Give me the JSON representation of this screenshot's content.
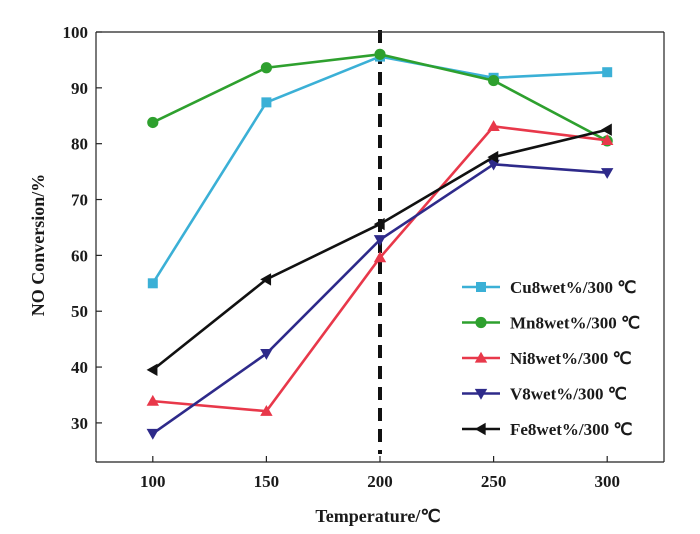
{
  "chart_data": {
    "type": "line",
    "xlabel": "Temperature/℃",
    "ylabel": "NO Conversion/%",
    "x": [
      100,
      150,
      200,
      250,
      300
    ],
    "xlim": [
      75,
      325
    ],
    "ylim": [
      23,
      100
    ],
    "xticks": [
      100,
      150,
      200,
      250,
      300
    ],
    "yticks": [
      30,
      40,
      50,
      60,
      70,
      80,
      90,
      100
    ],
    "grid": false,
    "legend_position": "bottom-right",
    "reference_line": {
      "x": 200,
      "style": "dashed",
      "color": "#111111"
    },
    "series": [
      {
        "name": "Cu8wet%/300 ℃",
        "color": "#3bb0d6",
        "marker": "square",
        "values": [
          55.0,
          87.4,
          95.6,
          91.8,
          92.8
        ]
      },
      {
        "name": "Mn8wet%/300 ℃",
        "color": "#2ea02e",
        "marker": "circle",
        "values": [
          83.8,
          93.6,
          96.0,
          91.3,
          80.5
        ]
      },
      {
        "name": "Ni8wet%/300 ℃",
        "color": "#e8384a",
        "marker": "triangle-up",
        "values": [
          33.9,
          32.1,
          59.6,
          83.1,
          80.6
        ]
      },
      {
        "name": "V8wet%/300 ℃",
        "color": "#2e2a8a",
        "marker": "triangle-down",
        "values": [
          28.1,
          42.4,
          62.8,
          76.3,
          74.8
        ]
      },
      {
        "name": "Fe8wet%/300 ℃",
        "color": "#111111",
        "marker": "triangle-left",
        "values": [
          39.5,
          55.7,
          65.6,
          77.6,
          82.5
        ]
      }
    ]
  }
}
